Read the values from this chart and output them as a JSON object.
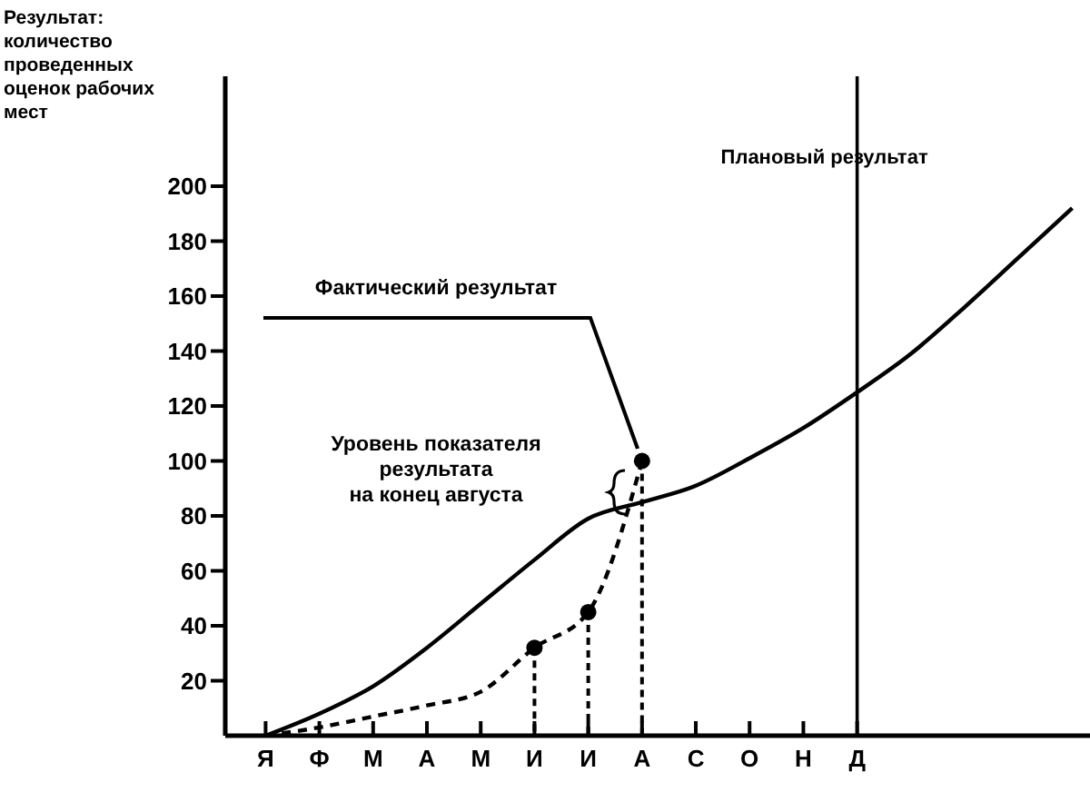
{
  "chart_data": {
    "type": "line",
    "ylabel": "Результат: количество проведенных оценок рабочих мест",
    "categories": [
      "Я",
      "Ф",
      "М",
      "А",
      "М",
      "И",
      "И",
      "А",
      "С",
      "О",
      "Н",
      "Д",
      null,
      null,
      null,
      null
    ],
    "series": [
      {
        "color": "#000000",
        "line_style": "solid",
        "marker": "none",
        "values": [
          0,
          8,
          18,
          32,
          48,
          64,
          79,
          85,
          91,
          101,
          112,
          125,
          139,
          156,
          174,
          192
        ]
      },
      {
        "color": "#000000",
        "line_style": "dashed",
        "marker": "none",
        "values": [
          0,
          3,
          7,
          11,
          16,
          32,
          45,
          100,
          null,
          null,
          null,
          null,
          null,
          null,
          null,
          null
        ]
      },
      {
        "type": "scatter",
        "color": "#000000",
        "marker": "circle",
        "values": [
          null,
          null,
          null,
          null,
          null,
          32,
          45,
          100,
          null,
          null,
          null,
          null,
          null,
          null,
          null,
          null
        ]
      }
    ],
    "ylim": [
      0,
      240
    ],
    "yticks": [
      20,
      40,
      60,
      80,
      100,
      120,
      140,
      160,
      180,
      200
    ],
    "ref_lines": [
      {
        "axis": "x",
        "value": "Д",
        "label": "Плановый результат",
        "color": "#000000",
        "line_style": "solid"
      }
    ],
    "annotations": [
      "Фактический результат",
      "Уровень показателя результата на конец августа"
    ],
    "grid": false,
    "legend": false
  }
}
